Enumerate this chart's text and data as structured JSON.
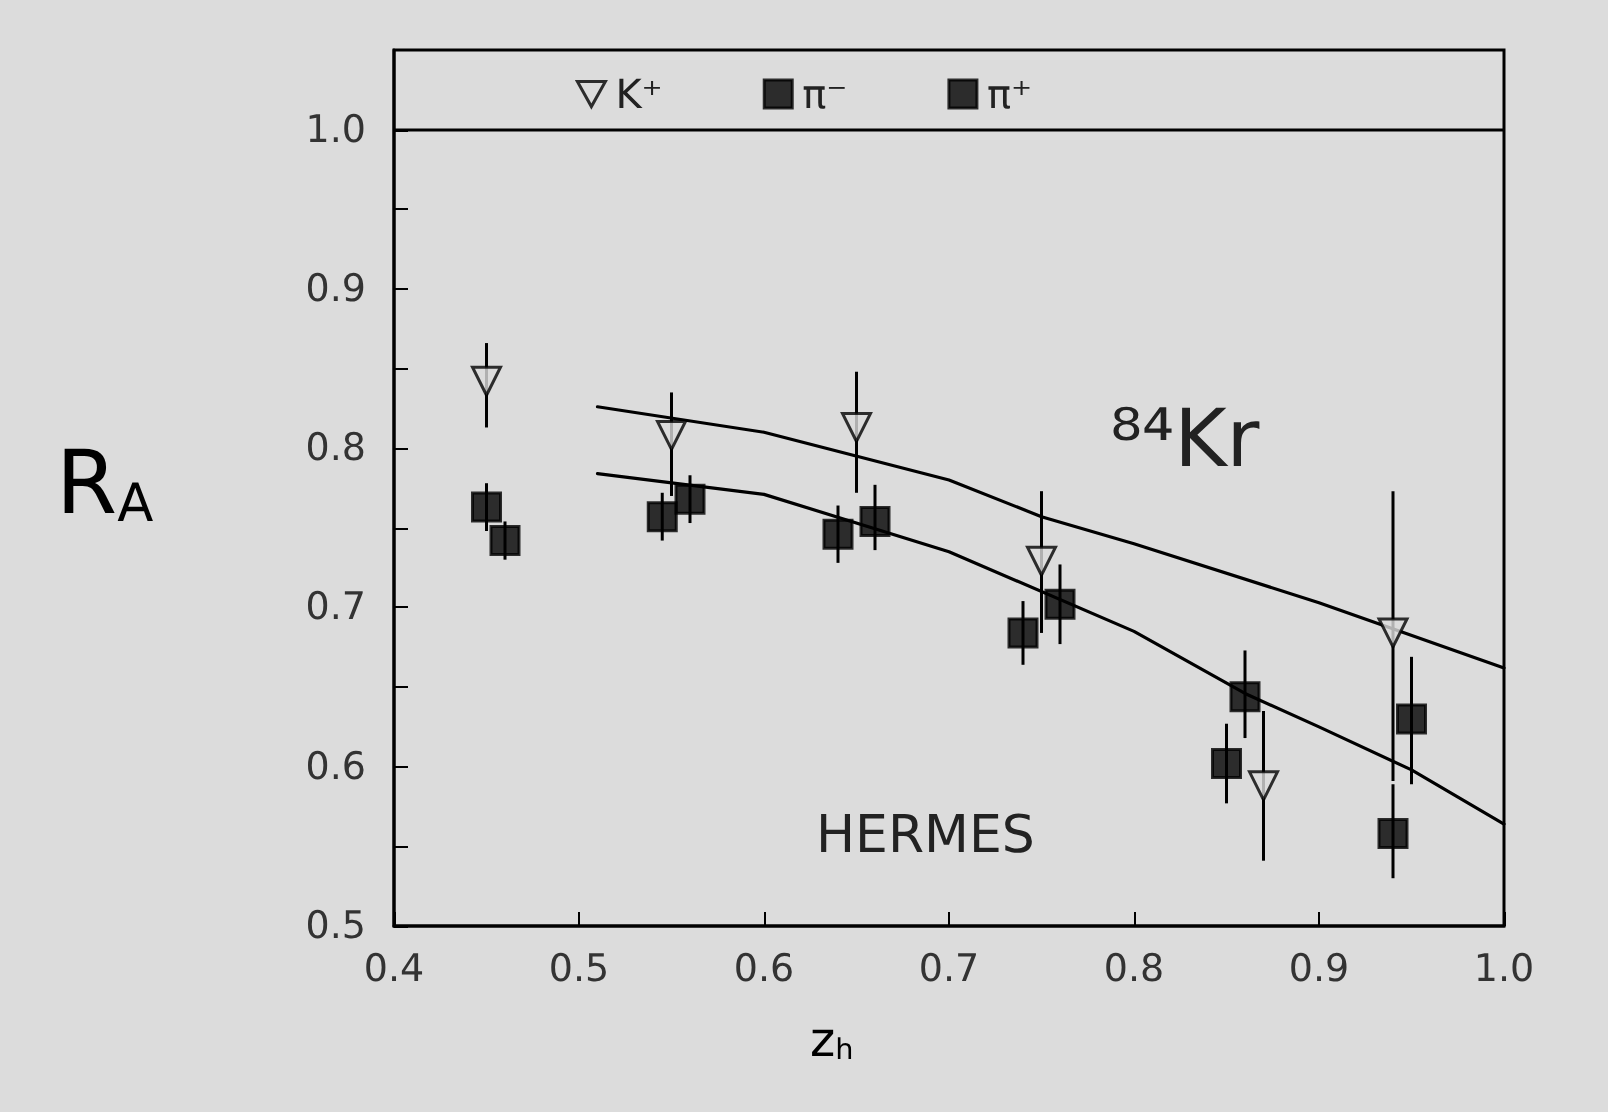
{
  "chart_data": {
    "type": "scatter",
    "xlabel": "z$_{h}$",
    "ylabel": "R$_{A}$",
    "xlim": [
      0.4,
      1.0
    ],
    "xticks": [
      0.4,
      0.5,
      0.6,
      0.7,
      0.8,
      0.9,
      {
        "value": 1.0,
        "label": "1.0"
      }
    ],
    "ylim": [
      0.5,
      1.05
    ],
    "yticks": [
      0.5,
      {
        "value": 0.55,
        "label": null
      },
      0.6,
      {
        "value": 0.65,
        "label": null
      },
      0.7,
      {
        "value": 0.75,
        "label": null
      },
      0.8,
      {
        "value": 0.85,
        "label": null
      },
      0.9,
      {
        "value": 0.95,
        "label": null
      },
      {
        "value": 1.0,
        "label": "1.0"
      }
    ],
    "legend": "top",
    "grid": false,
    "ref_lines": [
      {
        "axis": "y",
        "value": 1.0,
        "label": null,
        "color": "#000000",
        "line_style": "solid"
      }
    ],
    "annotations": [
      "⁸⁴Kr",
      "HERMES"
    ],
    "series": [
      {
        "name": "K⁺",
        "marker": "triangle",
        "color": "#000000",
        "x": [
          0.45,
          0.55,
          0.65,
          0.75,
          0.87,
          0.94
        ],
        "values": [
          0.842,
          0.808,
          0.813,
          0.729,
          0.588,
          0.684
        ],
        "errors": [
          [
            0.813,
            0.866
          ],
          [
            0.77,
            0.835
          ],
          [
            0.772,
            0.848
          ],
          [
            0.684,
            0.773
          ],
          [
            0.541,
            0.635
          ],
          [
            0.591,
            0.773
          ]
        ]
      },
      {
        "name": "π⁻",
        "marker": "square",
        "color": "#000000",
        "x": [
          0.46,
          0.56,
          0.66,
          0.76,
          0.86,
          0.95
        ],
        "values": [
          0.742,
          0.768,
          0.754,
          0.702,
          0.644,
          0.63
        ],
        "errors": [
          0.012,
          0.015,
          [
            0.736,
            0.777
          ],
          [
            0.677,
            0.727
          ],
          [
            0.618,
            0.673
          ],
          [
            0.589,
            0.669
          ]
        ]
      },
      {
        "name": "π⁺",
        "marker": "square",
        "color": "#000000",
        "x": [
          0.45,
          0.545,
          0.64,
          0.74,
          0.85,
          0.94
        ],
        "values": [
          0.763,
          0.757,
          0.746,
          0.684,
          0.602,
          0.558
        ],
        "errors": [
          0.015,
          0.015,
          0.018,
          0.02,
          0.025,
          [
            0.53,
            0.589
          ]
        ]
      },
      {
        "type": "line",
        "marker": "none",
        "color": "#000000",
        "x": [
          0.51,
          0.6,
          0.7,
          0.75,
          0.8,
          0.9,
          1.0
        ],
        "values": [
          0.826,
          0.81,
          0.78,
          0.757,
          0.74,
          0.703,
          0.662
        ]
      },
      {
        "type": "line",
        "marker": "none",
        "color": "#000000",
        "x": [
          0.51,
          0.6,
          0.7,
          0.8,
          0.86,
          0.9,
          0.95,
          1.0
        ],
        "values": [
          0.784,
          0.771,
          0.735,
          0.685,
          0.646,
          0.625,
          0.598,
          0.564
        ]
      }
    ]
  }
}
